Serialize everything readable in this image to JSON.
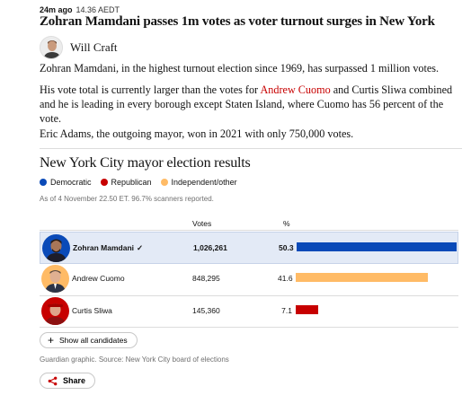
{
  "meta": {
    "ago": "24m ago",
    "time": "14.36 AEDT"
  },
  "headline": "Zohran Mamdani passes 1m votes as voter turnout surges in New York",
  "byline": {
    "author": "Will Craft"
  },
  "body": {
    "p1": "Zohran Mamdani, in the highest turnout election since 1969, has surpassed 1 million votes.",
    "p2_before": "His vote total is currently larger than the votes for ",
    "p2_link": "Andrew Cuomo",
    "p2_after": " and Curtis Sliwa combined and he is leading in every borough except Staten Island, where Cuomo has 56 percent of the vote.",
    "p3": "Eric Adams, the outgoing mayor, won in 2021 with only 750,000 votes."
  },
  "results": {
    "title": "New York City mayor election results",
    "legend": [
      {
        "label": "Democratic",
        "color": "#0a4ab8"
      },
      {
        "label": "Republican",
        "color": "#c70000"
      },
      {
        "label": "Independent/other",
        "color": "#ffbb66"
      }
    ],
    "reported": "As of 4 November 22.50 ET. 96.7% scanners reported.",
    "columns": {
      "votes": "Votes",
      "pct": "%"
    },
    "candidates": [
      {
        "name": "Zohran Mamdani",
        "check": "✓",
        "votes": "1,026,261",
        "pct": "50.3",
        "share": 50.3,
        "color": "#0a4ab8",
        "winner": true
      },
      {
        "name": "Andrew Cuomo",
        "check": "",
        "votes": "848,295",
        "pct": "41.6",
        "share": 41.6,
        "color": "#ffbb66",
        "winner": false
      },
      {
        "name": "Curtis Sliwa",
        "check": "",
        "votes": "145,360",
        "pct": "7.1",
        "share": 7.1,
        "color": "#c70000",
        "winner": false
      }
    ],
    "show_all": "Show all candidates",
    "source": "Guardian graphic. Source: New York City board of elections"
  },
  "share_label": "Share"
}
